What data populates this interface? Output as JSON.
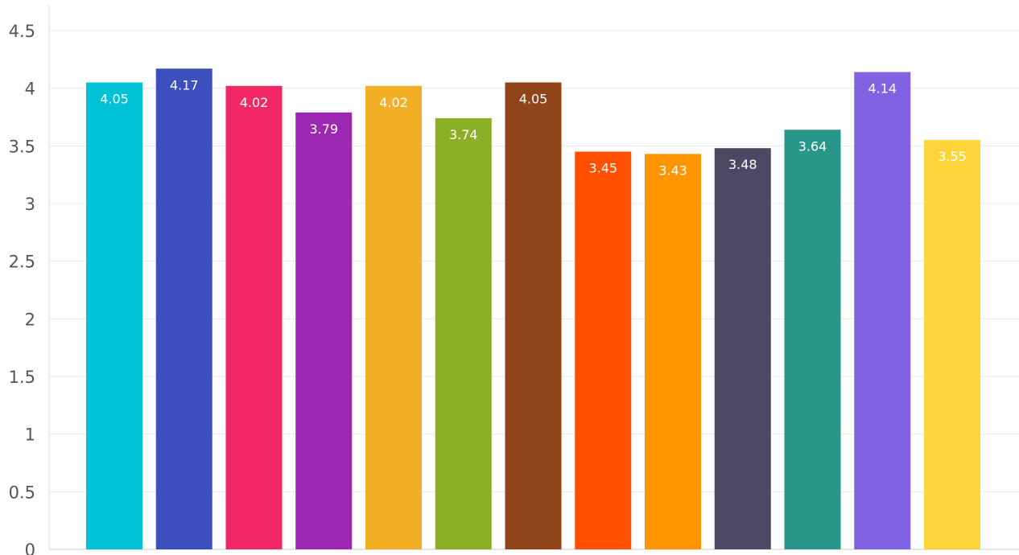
{
  "chart_data": {
    "type": "bar",
    "title": "",
    "xlabel": "",
    "ylabel": "",
    "ylim": [
      0,
      4.5
    ],
    "yticks": [
      "0",
      "0.5",
      "1",
      "1.5",
      "2",
      "2.5",
      "3",
      "3.5",
      "4",
      "4.5"
    ],
    "grid": true,
    "legend": "none",
    "categories": [
      "",
      "",
      "",
      "",
      "",
      "",
      "",
      "",
      "",
      "",
      "",
      "",
      ""
    ],
    "values": [
      4.05,
      4.17,
      4.02,
      3.79,
      4.02,
      3.74,
      4.05,
      3.45,
      3.43,
      3.48,
      3.64,
      4.14,
      3.55
    ],
    "data_labels": [
      "4.05",
      "4.17",
      "4.02",
      "3.79",
      "4.02",
      "3.74",
      "4.05",
      "3.45",
      "3.43",
      "3.48",
      "3.64",
      "4.14",
      "3.55"
    ],
    "colors": [
      "#00C1D6",
      "#3B50BC",
      "#F22866",
      "#9C28B2",
      "#F2AF26",
      "#8CAF28",
      "#8F4419",
      "#FF5000",
      "#FF9600",
      "#4B4864",
      "#289688",
      "#7F63E2",
      "#FDD43A"
    ],
    "label_color": "#ffffff"
  }
}
